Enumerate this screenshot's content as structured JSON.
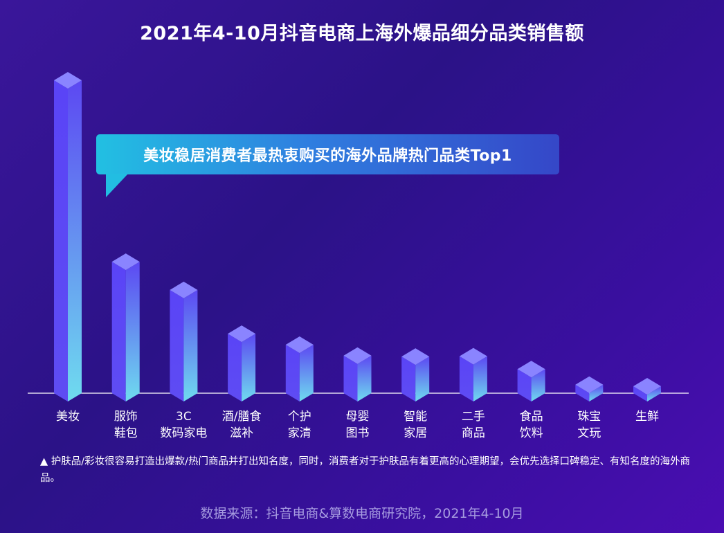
{
  "title": "2021年4-10月抖音电商上海外爆品细分品类销售额",
  "callout": "美妆稳居消费者最热衷购买的海外品牌热门品类Top1",
  "chart_data": {
    "type": "bar",
    "title": "2021年4-10月抖音电商上海外爆品细分品类销售额",
    "categories": [
      [
        "美妆"
      ],
      [
        "服饰",
        "鞋包"
      ],
      [
        "3C",
        "数码家电"
      ],
      [
        "酒/膳食",
        "滋补"
      ],
      [
        "个护",
        "家清"
      ],
      [
        "母婴",
        "图书"
      ],
      [
        "智能",
        "家居"
      ],
      [
        "二手",
        "商品"
      ],
      [
        "食品",
        "饮料"
      ],
      [
        "珠宝",
        "文玩"
      ],
      [
        "生鲜"
      ]
    ],
    "values": [
      100,
      42,
      33,
      19,
      15.5,
      12,
      11.7,
      11.8,
      7.7,
      2.7,
      2.2
    ],
    "value_note_unit": "relative (美妆 = 100), no axis printed",
    "xlabel": "",
    "ylabel": "",
    "grid": false,
    "colors": {
      "front": "#5b45f5",
      "side_top": "#5c44f4",
      "side_bottom": "#6ed8ef",
      "cap": "#8a84ff"
    }
  },
  "note": "▲ 护肤品/彩妆很容易打造出爆款/热门商品并打出知名度，同时，消费者对于护肤品有着更高的心理期望，会优先选择口碑稳定、有知名度的海外商品。",
  "source": "数据来源：抖音电商&算数电商研究院，2021年4-10月"
}
